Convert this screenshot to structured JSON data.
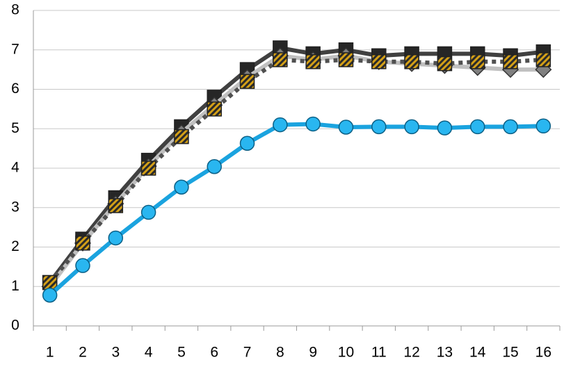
{
  "chart_data": {
    "type": "line",
    "categories": [
      "1",
      "2",
      "3",
      "4",
      "5",
      "6",
      "7",
      "8",
      "9",
      "10",
      "11",
      "12",
      "13",
      "14",
      "15",
      "16"
    ],
    "ylim": [
      0,
      8
    ],
    "yticks": [
      0,
      1,
      2,
      3,
      4,
      5,
      6,
      7,
      8
    ],
    "grid": true,
    "series": [
      {
        "color": "#404040",
        "dash": "solid",
        "marker": "square",
        "marker_color": "#262626",
        "values": [
          1.1,
          2.2,
          3.25,
          4.2,
          5.05,
          5.8,
          6.5,
          7.05,
          6.9,
          7.0,
          6.85,
          6.9,
          6.9,
          6.9,
          6.85,
          6.95
        ]
      },
      {
        "color": "#c0c0c0",
        "dash": "solid",
        "marker": "diamond",
        "marker_color": "#808080",
        "values": [
          1.0,
          2.1,
          3.1,
          4.05,
          4.9,
          5.6,
          6.3,
          6.85,
          6.75,
          6.85,
          6.7,
          6.65,
          6.6,
          6.55,
          6.5,
          6.5
        ]
      },
      {
        "color": "#505050",
        "dash": "dotted",
        "marker": "hatched-square",
        "marker_color": "#d4a017",
        "values": [
          1.1,
          2.1,
          3.05,
          4.0,
          4.8,
          5.5,
          6.2,
          6.75,
          6.7,
          6.75,
          6.7,
          6.7,
          6.65,
          6.7,
          6.7,
          6.75
        ]
      },
      {
        "color": "#1aa3df",
        "dash": "solid",
        "marker": "circle",
        "marker_color": "#29b6f0",
        "values": [
          0.78,
          1.53,
          2.23,
          2.88,
          3.52,
          4.04,
          4.63,
          5.1,
          5.12,
          5.04,
          5.05,
          5.05,
          5.02,
          5.05,
          5.05,
          5.07
        ]
      }
    ]
  }
}
